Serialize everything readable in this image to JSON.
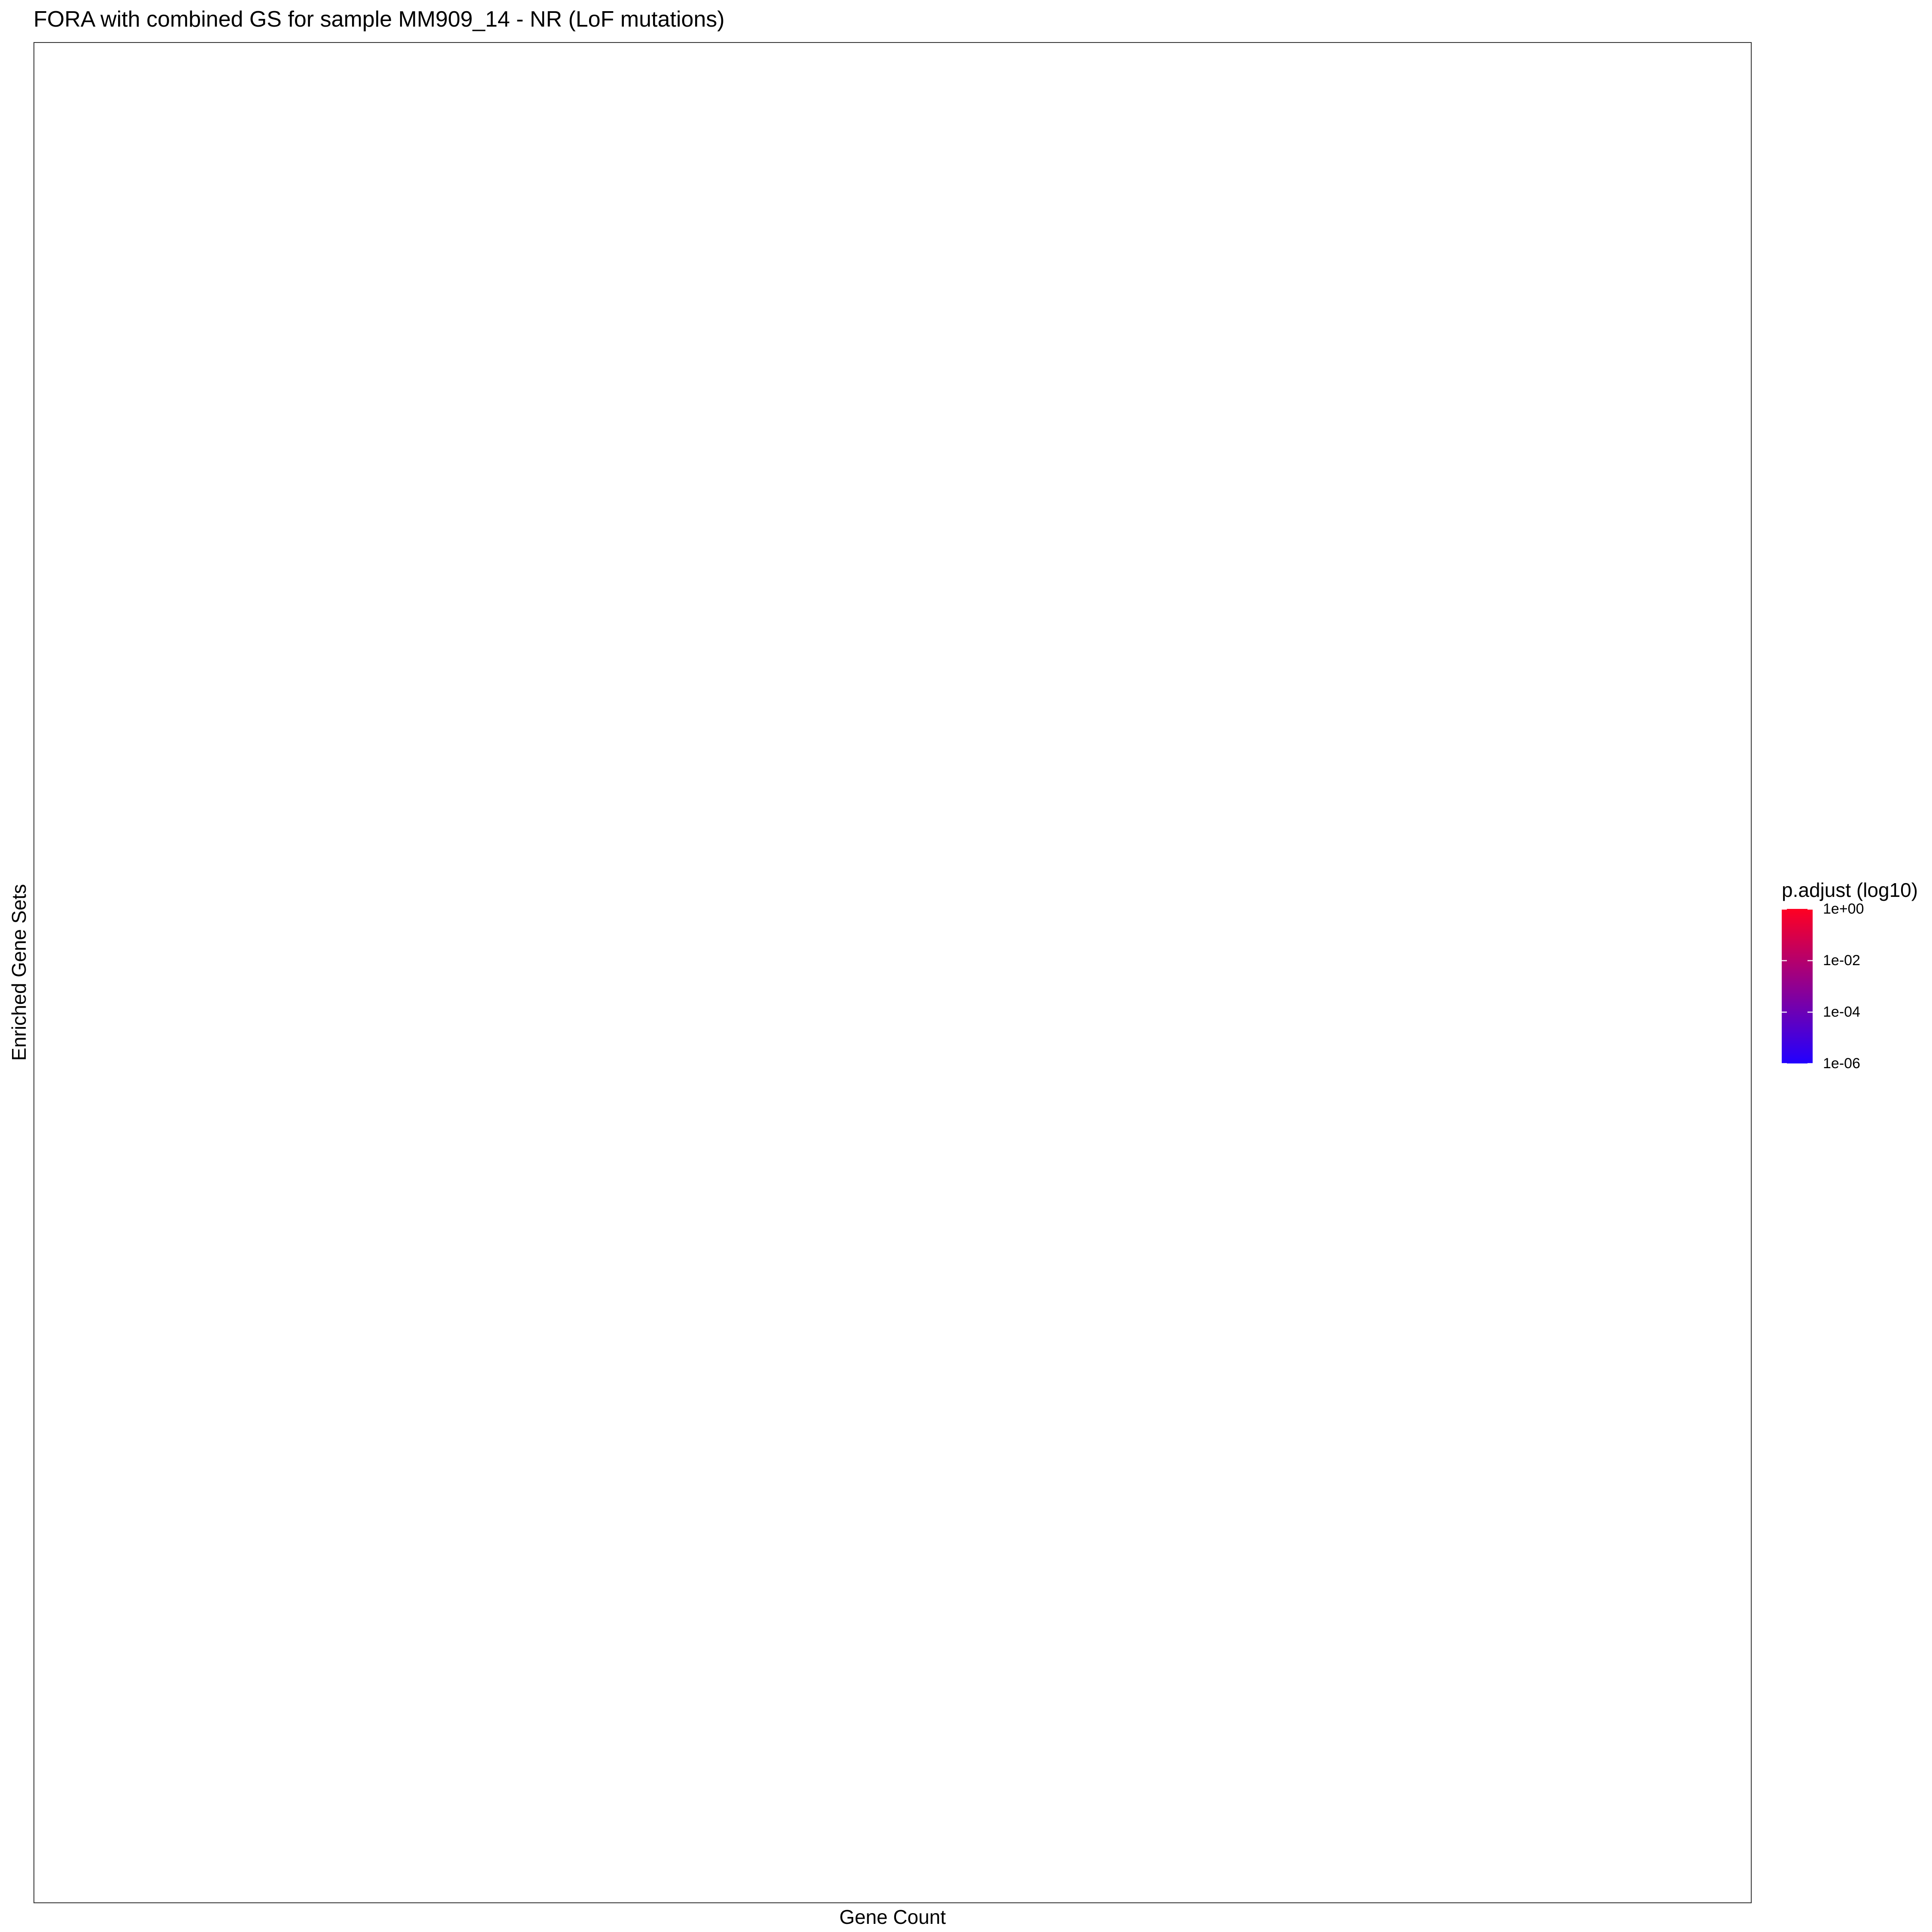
{
  "chart_data": {
    "type": "scatter",
    "title": "FORA with combined GS for sample MM909_14 - NR (LoF mutations)",
    "xlabel": "Gene Count",
    "ylabel": "Enriched Gene Sets",
    "series": [],
    "legend": {
      "title": "p.adjust (log10)",
      "placement": "right",
      "scale": "log10",
      "range": [
        1e-06,
        1
      ],
      "ticks": [
        {
          "label": "1e+00",
          "value": 1
        },
        {
          "label": "1e-02",
          "value": 0.01
        },
        {
          "label": "1e-04",
          "value": 0.0001
        },
        {
          "label": "1e-06",
          "value": 1e-06
        }
      ],
      "color_high": "#ff0022",
      "color_low": "#2200ff"
    },
    "grid": false
  }
}
